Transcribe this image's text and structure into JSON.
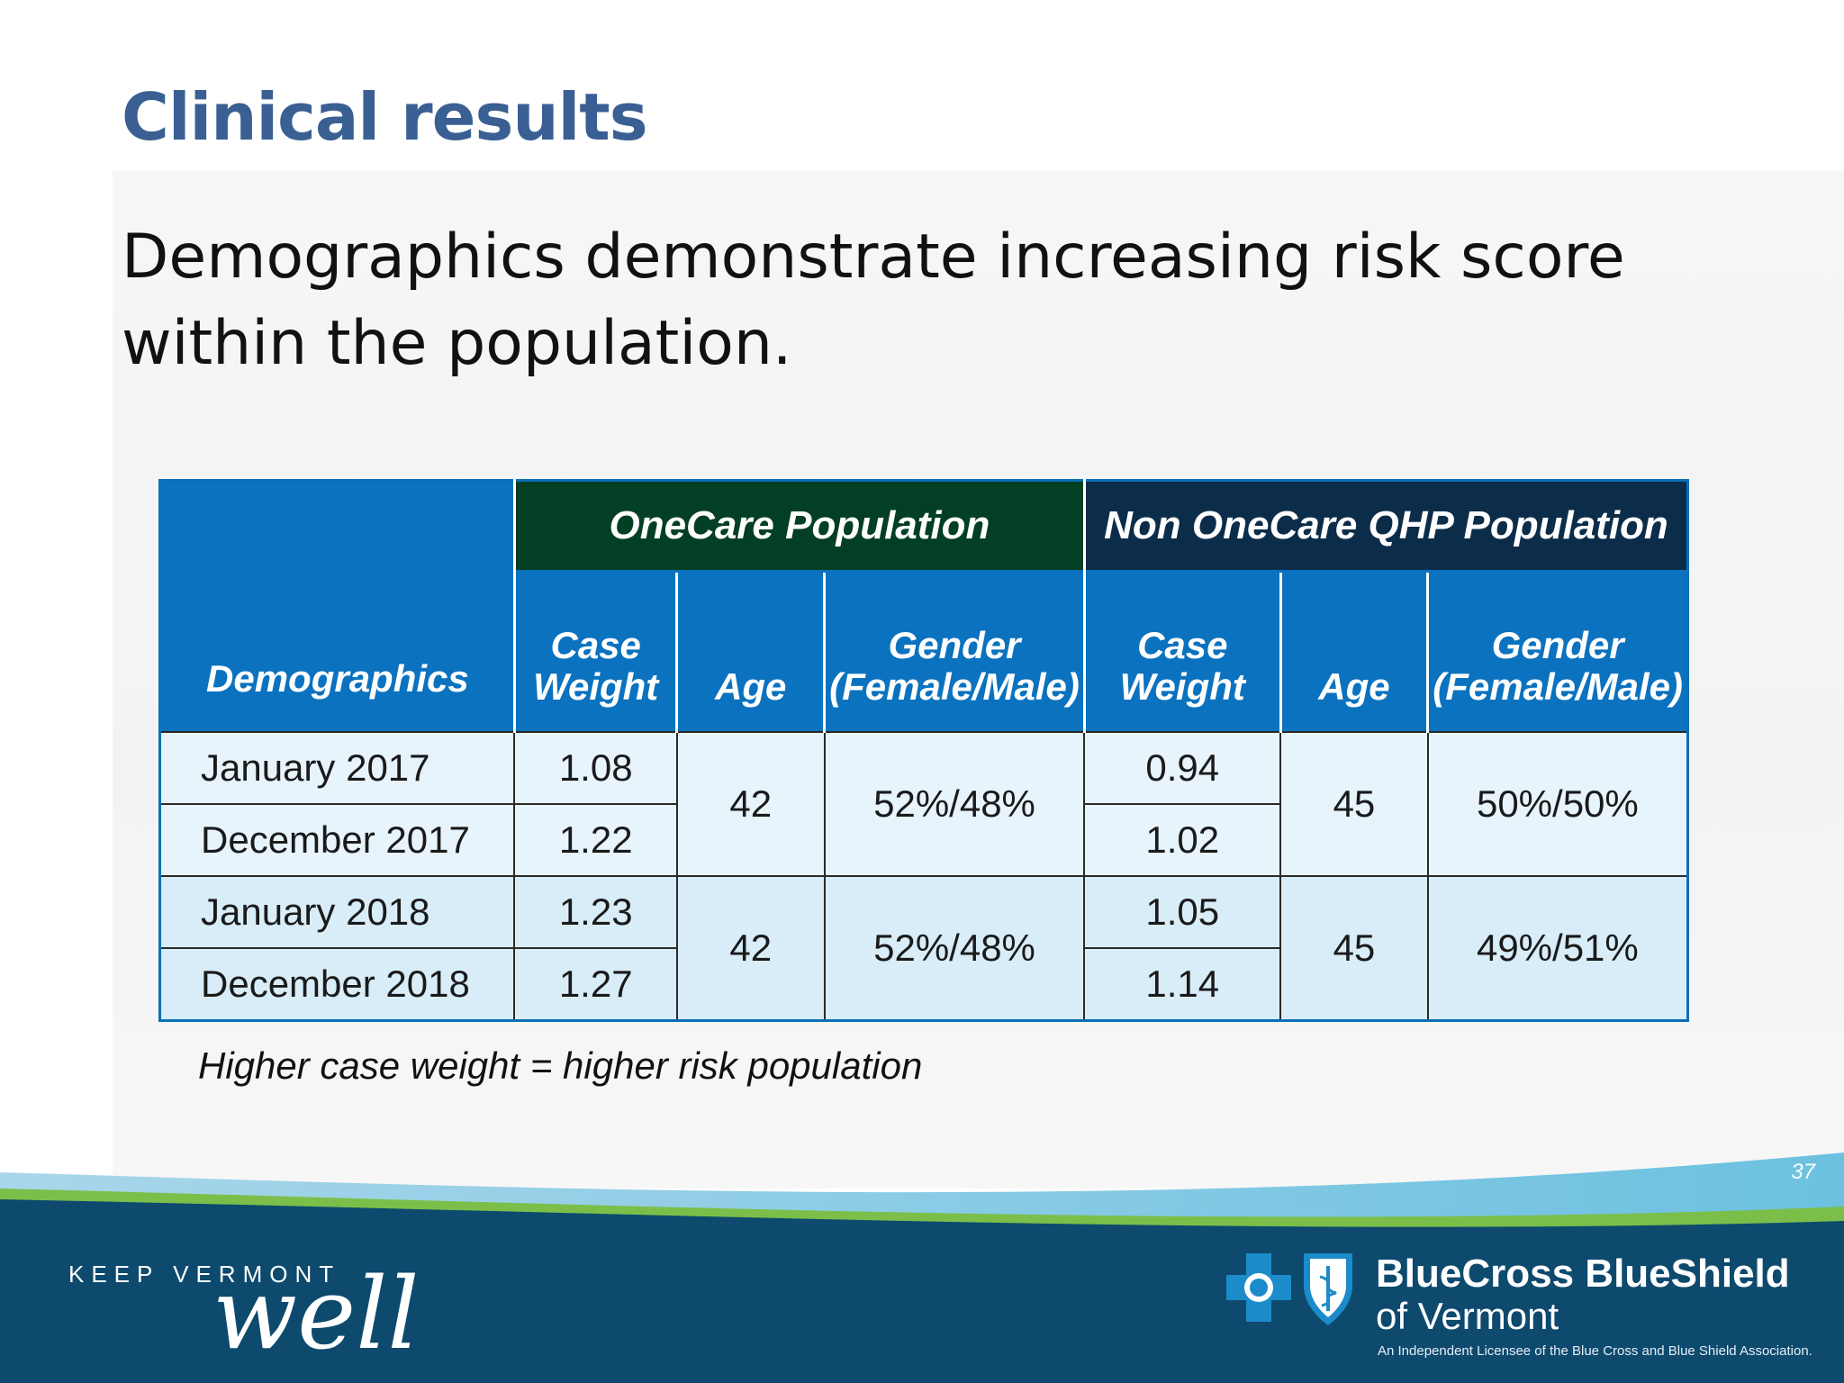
{
  "slide": {
    "title": "Clinical results",
    "subtitle": "Demographics demonstrate increasing risk score within the population.",
    "page_number": "37",
    "note": "Higher case weight = higher risk population"
  },
  "table": {
    "corner_header": "Demographics",
    "groups": [
      "OneCare Population",
      "Non OneCare QHP Population"
    ],
    "columns": [
      "Case Weight",
      "Age",
      "Gender (Female/Male)",
      "Case Weight",
      "Age",
      "Gender (Female/Male)"
    ],
    "rows": [
      {
        "label": "January 2017",
        "onecare_cw": "1.08",
        "non_cw": "0.94"
      },
      {
        "label": "December 2017",
        "onecare_cw": "1.22",
        "non_cw": "1.02"
      },
      {
        "label": "January 2018",
        "onecare_cw": "1.23",
        "non_cw": "1.05"
      },
      {
        "label": "December 2018",
        "onecare_cw": "1.27",
        "non_cw": "1.14"
      }
    ],
    "year_groups": [
      {
        "onecare_age": "42",
        "onecare_gender": "52%/48%",
        "non_age": "45",
        "non_gender": "50%/50%"
      },
      {
        "onecare_age": "42",
        "onecare_gender": "52%/48%",
        "non_age": "45",
        "non_gender": "49%/51%"
      }
    ]
  },
  "footer": {
    "keep_vermont": "KEEP VERMONT",
    "well": "well",
    "brand_name": "BlueCross BlueShield",
    "brand_sub": "of Vermont",
    "license": "An Independent Licensee of the Blue Cross and Blue Shield Association."
  },
  "colors": {
    "title": "#3a5f93",
    "onecare_header": "#033f24",
    "non_onecare_header": "#0c2d4a",
    "column_header": "#0b72bf",
    "footer_navy": "#0d4a6e"
  }
}
